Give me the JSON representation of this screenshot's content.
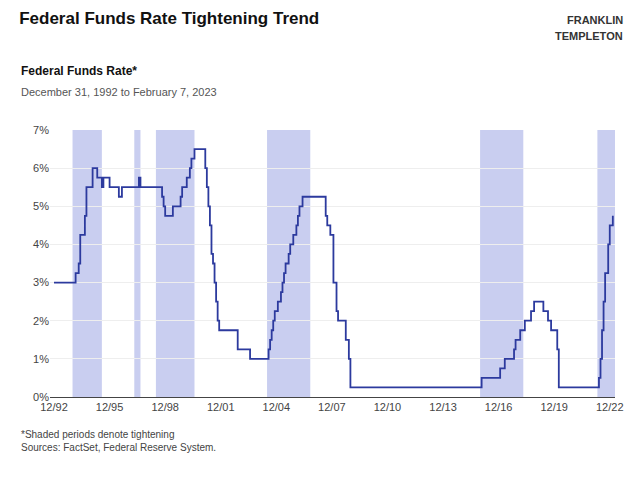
{
  "chart_data": {
    "type": "line",
    "title": "Federal Funds Rate Tightening Trend",
    "subtitle": "Federal Funds Rate*",
    "annotations": [
      "December 31, 1992 to February 7, 2023",
      "*Shaded periods denote tightening\nSources: FactSet, Federal Reserve System.",
      "FRANKLIN",
      "TEMPLETON"
    ],
    "color": "#2c3a9e",
    "line_style": "step",
    "shaded_regions": {
      "color": "#c9cef0",
      "ranges": [
        [
          1993.917,
          1995.5
        ],
        [
          1997.25,
          1997.583
        ],
        [
          1998.417,
          2000.5
        ],
        [
          2004.417,
          2006.75
        ],
        [
          2015.917,
          2018.25
        ],
        [
          2022.25,
          2023.2
        ]
      ]
    },
    "xlim": [
      1992.7,
      2023.2
    ],
    "xticks": [
      {
        "value": 1992.917,
        "label": "12/92"
      },
      {
        "value": 1995.917,
        "label": "12/95"
      },
      {
        "value": 1998.917,
        "label": "12/98"
      },
      {
        "value": 2001.917,
        "label": "12/01"
      },
      {
        "value": 2004.917,
        "label": "12/04"
      },
      {
        "value": 2007.917,
        "label": "12/07"
      },
      {
        "value": 2010.917,
        "label": "12/10"
      },
      {
        "value": 2013.917,
        "label": "12/13"
      },
      {
        "value": 2016.917,
        "label": "12/16"
      },
      {
        "value": 2019.917,
        "label": "12/19"
      },
      {
        "value": 2022.917,
        "label": "12/22"
      }
    ],
    "ylim": [
      0,
      7
    ],
    "yticks": [
      {
        "value": 0,
        "label": "0%"
      },
      {
        "value": 1,
        "label": "1%"
      },
      {
        "value": 2,
        "label": "2%"
      },
      {
        "value": 3,
        "label": "3%"
      },
      {
        "value": 4,
        "label": "4%"
      },
      {
        "value": 5,
        "label": "5%"
      },
      {
        "value": 6,
        "label": "6%"
      },
      {
        "value": 7,
        "label": "7%"
      }
    ],
    "grid": true,
    "x": [
      1992.917,
      1993.0,
      1994.0,
      1994.083,
      1994.25,
      1994.333,
      1994.5,
      1994.583,
      1994.667,
      1994.917,
      1995.0,
      1995.083,
      1995.25,
      1995.5,
      1995.583,
      1995.75,
      1995.917,
      1996.25,
      1996.417,
      1996.583,
      1997.0,
      1997.25,
      1997.333,
      1997.5,
      1997.583,
      1998.0,
      1998.417,
      1998.5,
      1998.583,
      1998.75,
      1998.833,
      1998.917,
      1999.0,
      1999.083,
      1999.25,
      1999.333,
      1999.5,
      1999.583,
      1999.75,
      1999.833,
      2000.0,
      2000.083,
      2000.25,
      2000.333,
      2000.5,
      2000.583,
      2000.667,
      2000.917,
      2001.0,
      2001.083,
      2001.167,
      2001.25,
      2001.333,
      2001.417,
      2001.5,
      2001.583,
      2001.667,
      2001.75,
      2001.833,
      2001.917,
      2002.0,
      2002.75,
      2002.833,
      2002.917,
      2003.0,
      2003.417,
      2003.5,
      2003.583,
      2003.917,
      2004.0,
      2004.083,
      2004.417,
      2004.5,
      2004.583,
      2004.667,
      2004.75,
      2004.833,
      2004.917,
      2005.0,
      2005.083,
      2005.167,
      2005.25,
      2005.333,
      2005.417,
      2005.5,
      2005.583,
      2005.667,
      2005.75,
      2005.833,
      2005.917,
      2006.0,
      2006.083,
      2006.167,
      2006.25,
      2006.333,
      2006.417,
      2006.5,
      2006.583,
      2006.667,
      2006.75,
      2006.917,
      2007.0,
      2007.083,
      2007.167,
      2007.25,
      2007.333,
      2007.417,
      2007.5,
      2007.583,
      2007.667,
      2007.75,
      2007.833,
      2007.917,
      2008.0,
      2008.083,
      2008.167,
      2008.25,
      2008.333,
      2008.5,
      2008.583,
      2008.667,
      2008.75,
      2008.833,
      2008.917,
      2009.0,
      2009.5,
      2010.0,
      2010.5,
      2011.0,
      2011.5,
      2012.0,
      2012.5,
      2013.0,
      2013.5,
      2014.0,
      2014.5,
      2015.0,
      2015.5,
      2015.917,
      2016.0,
      2016.5,
      2016.917,
      2017.0,
      2017.25,
      2017.5,
      2017.583,
      2017.75,
      2017.833,
      2017.917,
      2018.0,
      2018.083,
      2018.25,
      2018.333,
      2018.583,
      2018.667,
      2018.75,
      2018.833,
      2018.917,
      2019.0,
      2019.25,
      2019.333,
      2019.583,
      2019.667,
      2019.75,
      2019.833,
      2019.917,
      2020.0,
      2020.083,
      2020.167,
      2020.25,
      2020.5,
      2020.75,
      2021.0,
      2021.5,
      2021.917,
      2022.0,
      2022.25,
      2022.333,
      2022.417,
      2022.5,
      2022.583,
      2022.667,
      2022.75,
      2022.833,
      2022.917,
      2023.083
    ],
    "values": [
      3.0,
      3.0,
      3.0,
      3.25,
      3.5,
      4.25,
      4.25,
      4.75,
      5.5,
      5.5,
      6.0,
      6.0,
      5.75,
      5.5,
      5.75,
      5.75,
      5.5,
      5.5,
      5.25,
      5.5,
      5.5,
      5.5,
      5.5,
      5.75,
      5.5,
      5.5,
      5.5,
      5.5,
      5.5,
      5.25,
      5.0,
      4.75,
      4.75,
      4.75,
      4.75,
      5.0,
      5.0,
      5.0,
      5.25,
      5.5,
      5.5,
      5.75,
      6.0,
      6.25,
      6.5,
      6.5,
      6.5,
      6.5,
      6.5,
      6.0,
      5.5,
      5.0,
      4.5,
      3.75,
      3.5,
      3.0,
      2.5,
      2.0,
      1.75,
      1.75,
      1.75,
      1.75,
      1.25,
      1.25,
      1.25,
      1.25,
      1.0,
      1.0,
      1.0,
      1.0,
      1.0,
      1.0,
      1.25,
      1.5,
      1.75,
      2.0,
      2.25,
      2.25,
      2.5,
      2.5,
      2.75,
      3.0,
      3.25,
      3.5,
      3.5,
      3.75,
      4.0,
      4.0,
      4.25,
      4.25,
      4.5,
      4.75,
      5.0,
      5.0,
      5.25,
      5.25,
      5.25,
      5.25,
      5.25,
      5.25,
      5.25,
      5.25,
      5.25,
      5.25,
      5.25,
      5.25,
      5.25,
      5.25,
      4.75,
      4.5,
      4.5,
      4.25,
      4.25,
      3.0,
      3.0,
      2.25,
      2.0,
      2.0,
      2.0,
      2.0,
      1.5,
      1.5,
      1.0,
      0.25,
      0.25,
      0.25,
      0.25,
      0.25,
      0.25,
      0.25,
      0.25,
      0.25,
      0.25,
      0.25,
      0.25,
      0.25,
      0.25,
      0.25,
      0.25,
      0.5,
      0.5,
      0.5,
      0.75,
      1.0,
      1.0,
      1.0,
      1.25,
      1.5,
      1.5,
      1.5,
      1.75,
      1.75,
      2.0,
      2.0,
      2.25,
      2.25,
      2.5,
      2.5,
      2.5,
      2.5,
      2.25,
      2.0,
      2.0,
      1.75,
      1.75,
      1.75,
      1.75,
      1.25,
      0.25,
      0.25,
      0.25,
      0.25,
      0.25,
      0.25,
      0.25,
      0.25,
      0.25,
      0.5,
      1.0,
      1.75,
      2.5,
      3.25,
      3.25,
      4.0,
      4.5,
      4.75
    ]
  }
}
